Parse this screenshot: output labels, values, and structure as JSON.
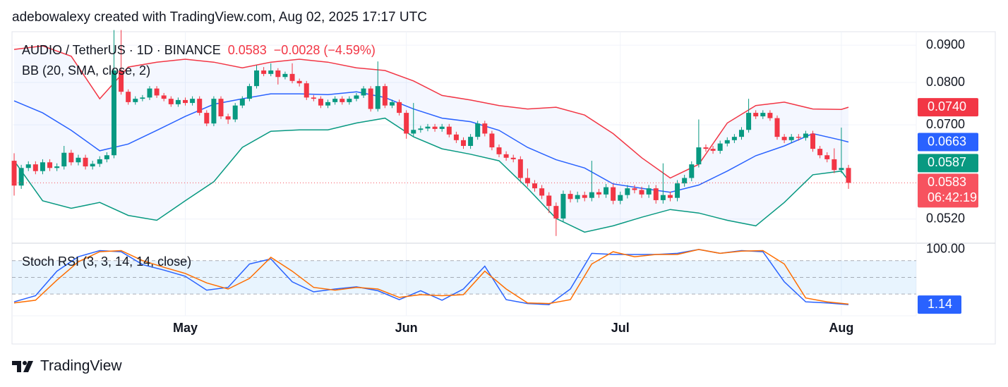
{
  "chart_data": {
    "type": "candlestick",
    "header": "adebowalexy created with TradingView.com, Aug 02, 2025 17:17 UTC",
    "title": "AUDIO / TetherUS · 1D · BINANCE",
    "quote": {
      "last": "0.0583",
      "change": "−0.0028 (−4.59%)"
    },
    "indicator_label": "BB (20, SMA, close, 2)",
    "brand": "TradingView",
    "up_color": "#089981",
    "down_color": "#f23645",
    "log_scale": true,
    "grid": true,
    "xlim": [
      -0.3,
      126.5
    ],
    "xticks": [
      {
        "value": 24,
        "label": "May"
      },
      {
        "value": 55,
        "label": "Jun"
      },
      {
        "value": 85,
        "label": "Jul"
      },
      {
        "value": 116,
        "label": "Aug"
      }
    ],
    "ylim": [
      0.0483,
      0.0939
    ],
    "yticks": [
      {
        "value": 0.09,
        "label": "0.0900"
      },
      {
        "value": 0.08,
        "label": "0.0800"
      },
      {
        "value": 0.07,
        "label": "0.0700"
      },
      {
        "value": 0.052,
        "label": "0.0520"
      }
    ],
    "open": [
      0.0625,
      0.0578,
      0.0611,
      0.0618,
      0.0605,
      0.0622,
      0.0611,
      0.0614,
      0.0641,
      0.0622,
      0.0631,
      0.0614,
      0.0619,
      0.0628,
      0.0636,
      0.0831,
      0.0777,
      0.0752,
      0.076,
      0.0763,
      0.0785,
      0.0768,
      0.076,
      0.0747,
      0.0757,
      0.075,
      0.076,
      0.0727,
      0.0703,
      0.076,
      0.0719,
      0.0712,
      0.0744,
      0.076,
      0.0791,
      0.0831,
      0.0822,
      0.0831,
      0.0814,
      0.0822,
      0.0804,
      0.0798,
      0.0763,
      0.076,
      0.0744,
      0.0752,
      0.076,
      0.0752,
      0.076,
      0.0768,
      0.0785,
      0.0736,
      0.0791,
      0.0744,
      0.0752,
      0.0727,
      0.0681,
      0.0689,
      0.0692,
      0.0696,
      0.0691,
      0.0696,
      0.0679,
      0.0667,
      0.0655,
      0.0674,
      0.0703,
      0.0681,
      0.0652,
      0.0638,
      0.0631,
      0.0628,
      0.0592,
      0.0582,
      0.0573,
      0.056,
      0.0542,
      0.0521,
      0.0563,
      0.0554,
      0.0561,
      0.0556,
      0.0566,
      0.0562,
      0.0575,
      0.0551,
      0.0561,
      0.0573,
      0.057,
      0.0562,
      0.0573,
      0.0552,
      0.0561,
      0.0556,
      0.0582,
      0.0592,
      0.0618,
      0.0652,
      0.0649,
      0.0645,
      0.066,
      0.0667,
      0.0674,
      0.0689,
      0.0727,
      0.0719,
      0.0727,
      0.0715,
      0.0674,
      0.0667,
      0.0674,
      0.0672,
      0.0681,
      0.0649,
      0.0636,
      0.0628,
      0.0607,
      0.0611
    ],
    "high": [
      0.064,
      0.0617,
      0.0624,
      0.0624,
      0.0628,
      0.0628,
      0.062,
      0.0655,
      0.0647,
      0.0637,
      0.0637,
      0.0625,
      0.0634,
      0.0642,
      0.0944,
      0.0944,
      0.0783,
      0.0766,
      0.0769,
      0.0791,
      0.0791,
      0.0774,
      0.0766,
      0.0763,
      0.0763,
      0.0766,
      0.0766,
      0.0733,
      0.0766,
      0.0766,
      0.0725,
      0.075,
      0.0766,
      0.0797,
      0.0845,
      0.084,
      0.085,
      0.0837,
      0.0828,
      0.085,
      0.081,
      0.0804,
      0.0769,
      0.0766,
      0.0758,
      0.0766,
      0.0766,
      0.0766,
      0.0774,
      0.0791,
      0.0791,
      0.0855,
      0.0797,
      0.0758,
      0.0758,
      0.0733,
      0.075,
      0.0698,
      0.0702,
      0.0702,
      0.0702,
      0.0702,
      0.0685,
      0.0673,
      0.068,
      0.0709,
      0.0709,
      0.0687,
      0.0658,
      0.0644,
      0.0637,
      0.0634,
      0.061,
      0.0588,
      0.0579,
      0.0566,
      0.0548,
      0.0569,
      0.0569,
      0.0567,
      0.0567,
      0.0625,
      0.0572,
      0.0581,
      0.0581,
      0.0567,
      0.0579,
      0.0579,
      0.0576,
      0.0579,
      0.0579,
      0.062,
      0.0567,
      0.0588,
      0.0598,
      0.0624,
      0.0712,
      0.0658,
      0.0655,
      0.0666,
      0.0673,
      0.068,
      0.0695,
      0.076,
      0.0733,
      0.0733,
      0.0733,
      0.0721,
      0.068,
      0.068,
      0.068,
      0.0687,
      0.0687,
      0.0655,
      0.0642,
      0.065,
      0.0694,
      0.0617
    ],
    "low": [
      0.056,
      0.0572,
      0.0605,
      0.0599,
      0.0599,
      0.0605,
      0.0605,
      0.0608,
      0.0616,
      0.0616,
      0.0608,
      0.0608,
      0.0613,
      0.0622,
      0.063,
      0.077,
      0.0746,
      0.0746,
      0.0754,
      0.0757,
      0.0762,
      0.0754,
      0.0741,
      0.0741,
      0.0744,
      0.0744,
      0.0721,
      0.0697,
      0.0697,
      0.0713,
      0.0702,
      0.0706,
      0.0738,
      0.0754,
      0.0785,
      0.0816,
      0.0816,
      0.0795,
      0.0808,
      0.0798,
      0.079,
      0.0757,
      0.0754,
      0.0738,
      0.0738,
      0.0746,
      0.0746,
      0.0746,
      0.0754,
      0.0762,
      0.073,
      0.073,
      0.0738,
      0.0738,
      0.0721,
      0.067,
      0.0675,
      0.0683,
      0.0686,
      0.0685,
      0.0685,
      0.0673,
      0.0661,
      0.0649,
      0.0649,
      0.0668,
      0.0675,
      0.0646,
      0.0632,
      0.0625,
      0.0622,
      0.0586,
      0.0576,
      0.0567,
      0.0554,
      0.053,
      0.0493,
      0.0515,
      0.0548,
      0.0548,
      0.055,
      0.055,
      0.0556,
      0.0556,
      0.0545,
      0.0545,
      0.0555,
      0.0564,
      0.0556,
      0.0556,
      0.0546,
      0.0546,
      0.055,
      0.055,
      0.0576,
      0.0586,
      0.0612,
      0.0643,
      0.0639,
      0.0639,
      0.0654,
      0.0661,
      0.0668,
      0.0683,
      0.0713,
      0.0713,
      0.0709,
      0.0668,
      0.0661,
      0.0661,
      0.0666,
      0.0666,
      0.0643,
      0.063,
      0.0622,
      0.0601,
      0.0601,
      0.0572
    ],
    "close": [
      0.0578,
      0.0611,
      0.0618,
      0.0605,
      0.0622,
      0.0611,
      0.0614,
      0.0641,
      0.0622,
      0.0631,
      0.0614,
      0.0619,
      0.0628,
      0.0636,
      0.0831,
      0.0777,
      0.0752,
      0.076,
      0.0763,
      0.0785,
      0.0768,
      0.076,
      0.0747,
      0.0757,
      0.075,
      0.076,
      0.0727,
      0.0703,
      0.076,
      0.0719,
      0.0712,
      0.0744,
      0.076,
      0.0791,
      0.0831,
      0.0822,
      0.0831,
      0.0814,
      0.0822,
      0.0804,
      0.0798,
      0.0763,
      0.076,
      0.0744,
      0.0752,
      0.076,
      0.0752,
      0.076,
      0.0768,
      0.0785,
      0.0736,
      0.0791,
      0.0744,
      0.0752,
      0.0727,
      0.0681,
      0.0689,
      0.0692,
      0.0696,
      0.0691,
      0.0696,
      0.0679,
      0.0667,
      0.0655,
      0.0674,
      0.0703,
      0.0681,
      0.0652,
      0.0638,
      0.0631,
      0.0628,
      0.0592,
      0.0582,
      0.0573,
      0.056,
      0.0542,
      0.0521,
      0.0563,
      0.0554,
      0.0561,
      0.0556,
      0.0566,
      0.0562,
      0.0575,
      0.0551,
      0.0561,
      0.0573,
      0.057,
      0.0562,
      0.0573,
      0.0552,
      0.0561,
      0.0556,
      0.0582,
      0.0592,
      0.0618,
      0.0652,
      0.0649,
      0.0645,
      0.066,
      0.0667,
      0.0674,
      0.0689,
      0.0727,
      0.0719,
      0.0727,
      0.0715,
      0.0674,
      0.0667,
      0.0674,
      0.0672,
      0.0681,
      0.0649,
      0.0636,
      0.0628,
      0.0607,
      0.0611,
      0.0583
    ],
    "bollinger": {
      "x": [
        0,
        4,
        8,
        12,
        16,
        20,
        24,
        28,
        32,
        36,
        40,
        44,
        48,
        52,
        56,
        60,
        64,
        68,
        72,
        76,
        80,
        84,
        88,
        92,
        96,
        100,
        104,
        108,
        112,
        116,
        117
      ],
      "fill_color": "#2962ff",
      "series": [
        {
          "color": "#f23645",
          "values": [
            0.0888,
            0.0898,
            0.0869,
            0.076,
            0.084,
            0.0853,
            0.0861,
            0.0853,
            0.0838,
            0.0853,
            0.0861,
            0.0853,
            0.0838,
            0.0831,
            0.0804,
            0.0768,
            0.0757,
            0.0744,
            0.0736,
            0.074,
            0.0722,
            0.0681,
            0.0631,
            0.0592,
            0.0618,
            0.0704,
            0.0744,
            0.0752,
            0.0736,
            0.0735,
            0.074
          ]
        },
        {
          "color": "#2962ff",
          "values": [
            0.0755,
            0.0727,
            0.0688,
            0.0645,
            0.0659,
            0.0688,
            0.0719,
            0.0747,
            0.076,
            0.0772,
            0.0772,
            0.077,
            0.0777,
            0.0763,
            0.0736,
            0.0715,
            0.0707,
            0.0688,
            0.0652,
            0.0627,
            0.0611,
            0.0581,
            0.0573,
            0.0566,
            0.0579,
            0.0605,
            0.0635,
            0.0655,
            0.0681,
            0.0667,
            0.0663
          ]
        },
        {
          "color": "#089981",
          "values": [
            0.0625,
            0.0551,
            0.0538,
            0.0548,
            0.0526,
            0.0518,
            0.0551,
            0.0585,
            0.0652,
            0.0686,
            0.0689,
            0.0689,
            0.0704,
            0.0715,
            0.0674,
            0.0649,
            0.0638,
            0.0625,
            0.0573,
            0.0521,
            0.0499,
            0.0509,
            0.0523,
            0.0536,
            0.053,
            0.0518,
            0.0509,
            0.0548,
            0.0598,
            0.0605,
            0.0587
          ]
        }
      ]
    },
    "price_badges": [
      {
        "value": 0.074,
        "label": "0.0740",
        "color": "#f23645"
      },
      {
        "value": 0.0663,
        "label": "0.0663",
        "color": "#2962ff"
      },
      {
        "value": 0.0587,
        "label": "0.0587",
        "color": "#089981"
      },
      {
        "value": 0.0583,
        "label": "0.0583",
        "color": "#f7525f",
        "countdown": "06:42:19"
      }
    ],
    "stoch_rsi": {
      "label": "Stoch RSI (3, 3, 14, 14, close)",
      "ylim": [
        -19,
        110
      ],
      "yticks": [
        {
          "value": 100,
          "label": "100.00"
        }
      ],
      "bands": [
        80,
        50,
        20
      ],
      "x": [
        0,
        3,
        6,
        9,
        12,
        15,
        18,
        21,
        24,
        27,
        30,
        33,
        36,
        39,
        42,
        45,
        48,
        51,
        54,
        57,
        60,
        63,
        66,
        69,
        72,
        75,
        78,
        81,
        84,
        87,
        90,
        93,
        96,
        99,
        102,
        105,
        108,
        111,
        114,
        117
      ],
      "series": [
        {
          "color": "#2962ff",
          "values": [
            6,
            17,
            61,
            87,
            98,
            96,
            73,
            63,
            52,
            27,
            32,
            74,
            83,
            42,
            24,
            29,
            33,
            26,
            10,
            26,
            9,
            29,
            70,
            10,
            3,
            1,
            29,
            93,
            91,
            91,
            91,
            93,
            100,
            93,
            98,
            96,
            42,
            6,
            4,
            1.14
          ]
        },
        {
          "color": "#ff6d00",
          "values": [
            4,
            9,
            45,
            78,
            96,
            98,
            80,
            68,
            57,
            40,
            29,
            48,
            86,
            61,
            32,
            27,
            32,
            29,
            14,
            19,
            17,
            19,
            61,
            29,
            4,
            3,
            10,
            74,
            96,
            87,
            91,
            91,
            100,
            93,
            97,
            98,
            74,
            13,
            6,
            2
          ]
        }
      ],
      "badge": {
        "value": 1.14,
        "label": "1.14",
        "color": "#2962ff"
      }
    }
  }
}
